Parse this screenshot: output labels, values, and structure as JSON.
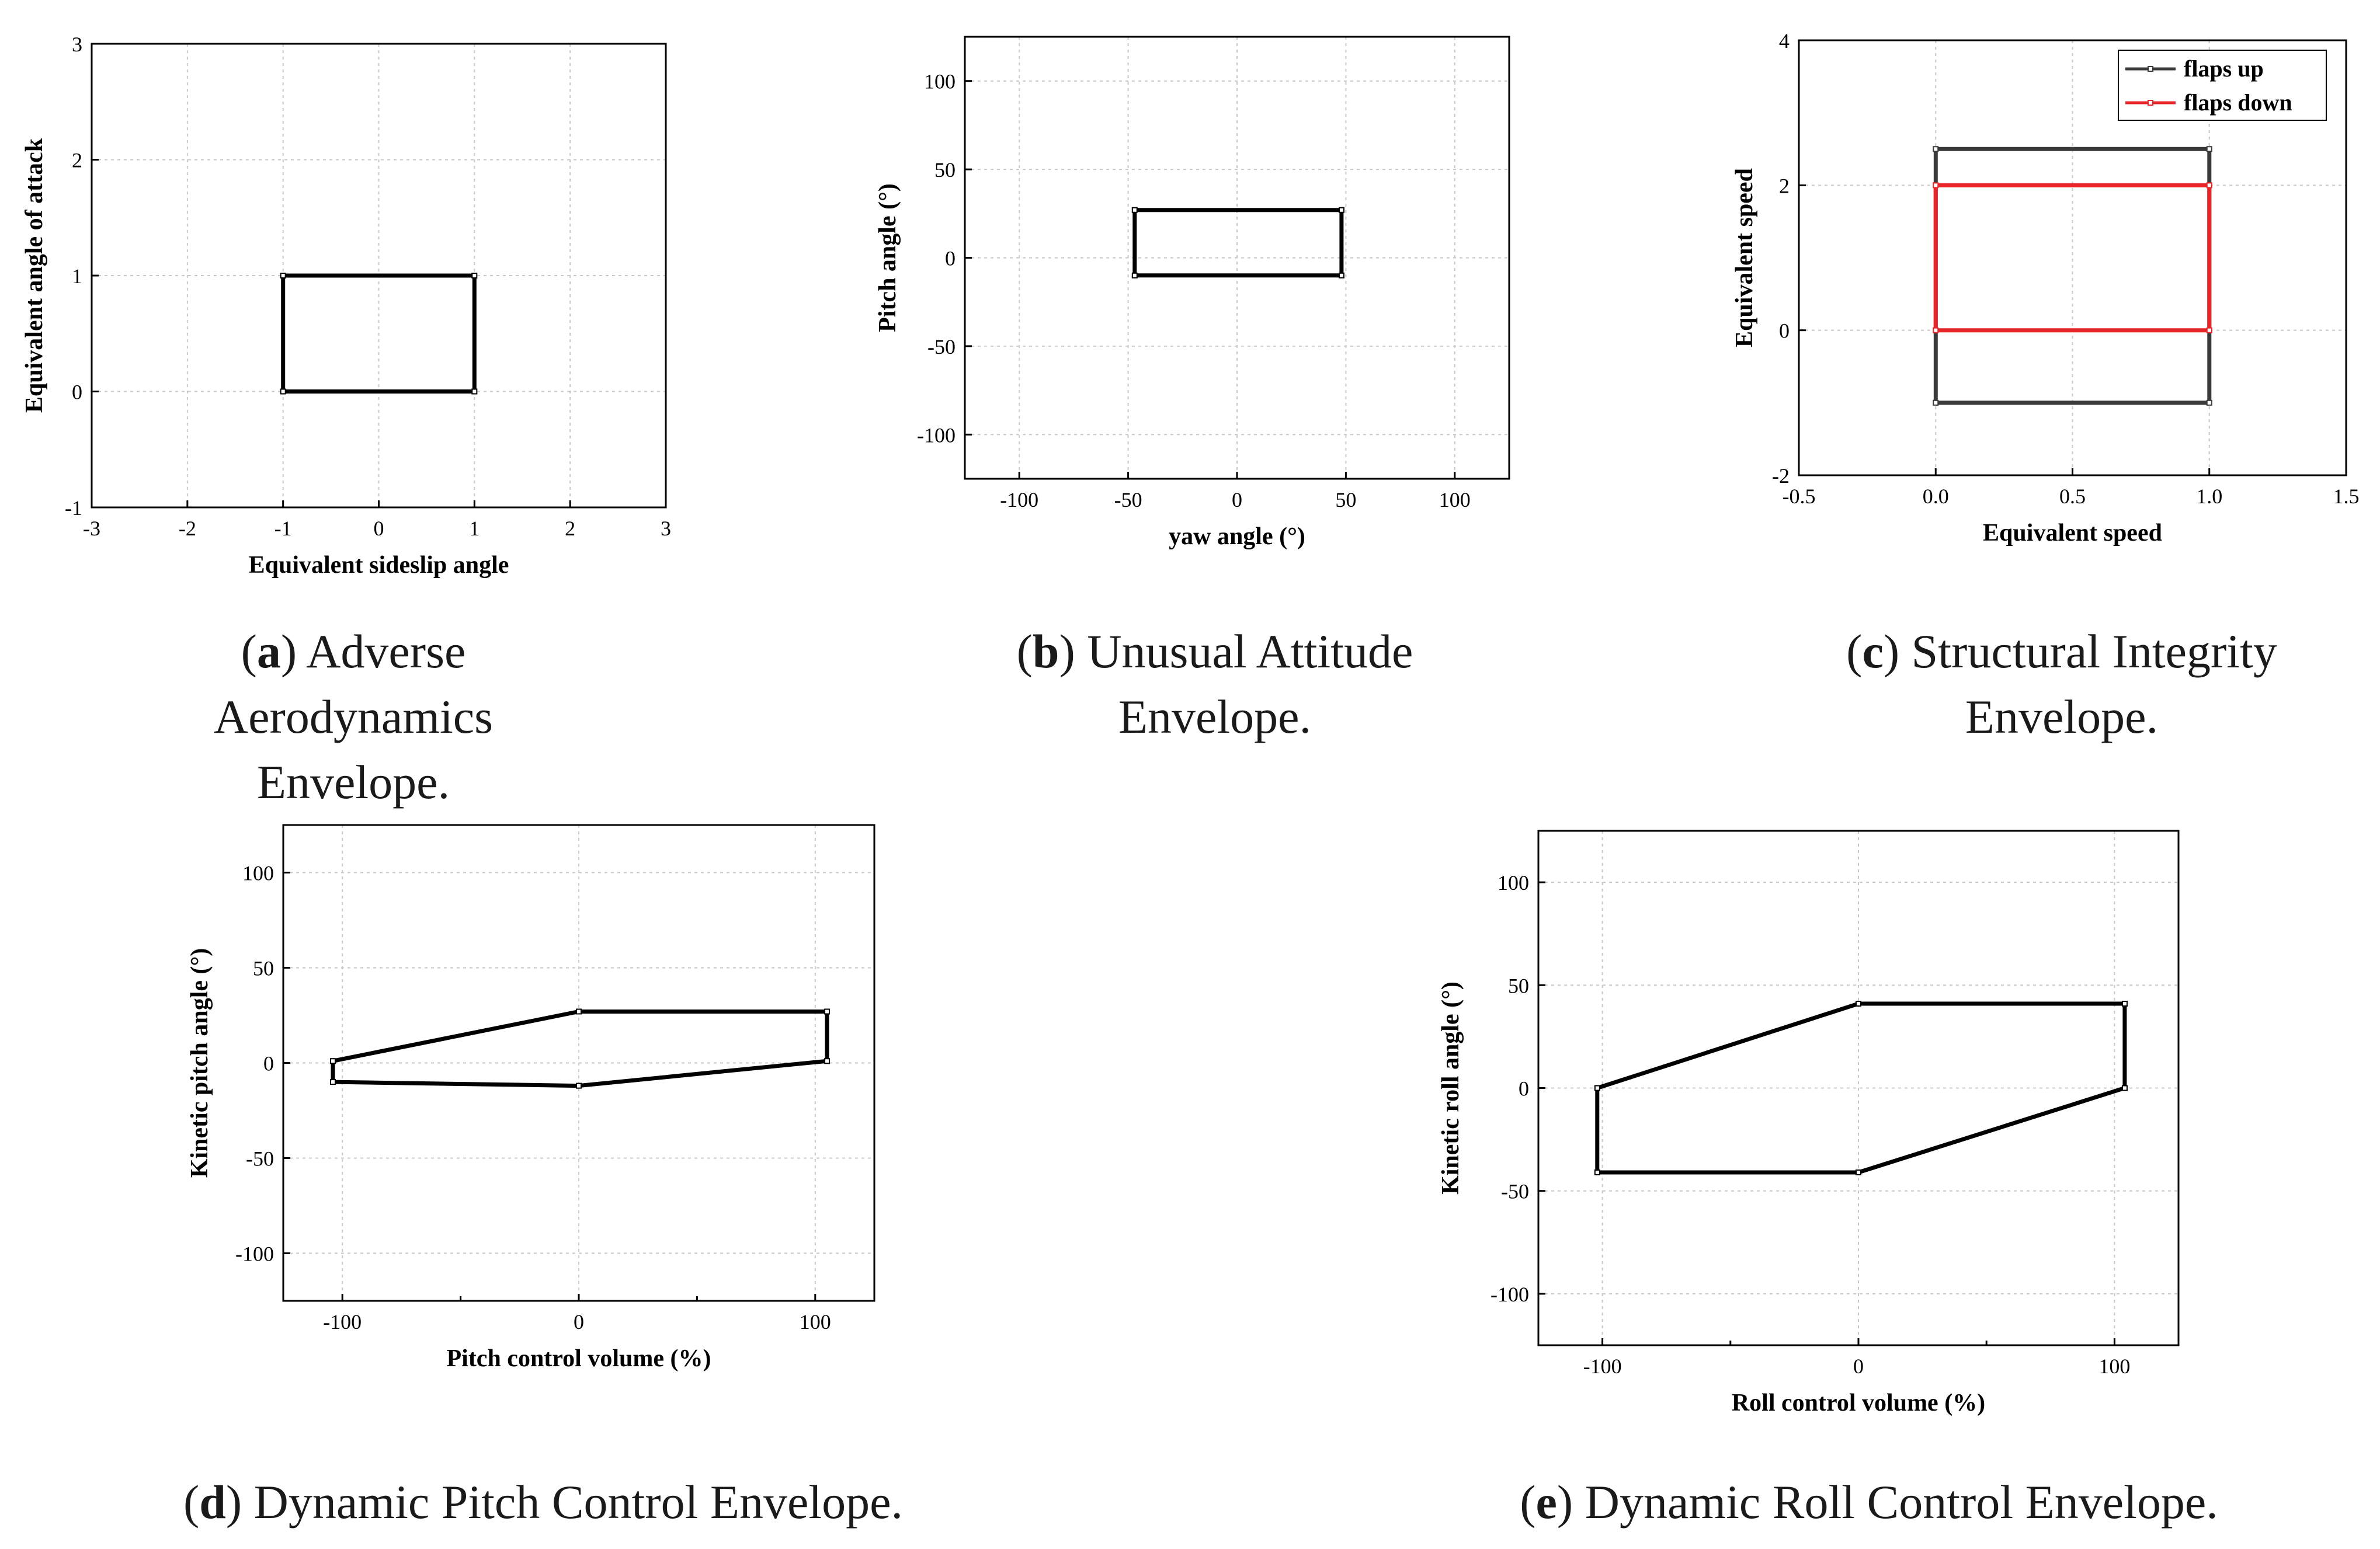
{
  "chart_data": [
    {
      "id": "a",
      "type": "line",
      "xlabel": "Equivalent sideslip angle",
      "ylabel": "Equivalent angle of attack",
      "xlim": [
        -3,
        3
      ],
      "ylim": [
        -1,
        3
      ],
      "xticks": [
        "-3",
        "-2",
        "-1",
        "0",
        "1",
        "2",
        "3"
      ],
      "yticks": [
        "-1",
        "0",
        "1",
        "2",
        "3"
      ],
      "xtick_values": [
        -3,
        -2,
        -1,
        0,
        1,
        2,
        3
      ],
      "ytick_values": [
        -1,
        0,
        1,
        2,
        3
      ],
      "series": [
        {
          "name": "envelope",
          "color": "#000000",
          "points": [
            [
              -1,
              0
            ],
            [
              1,
              0
            ],
            [
              1,
              1
            ],
            [
              -1,
              1
            ],
            [
              -1,
              0
            ]
          ]
        }
      ],
      "caption_letter": "a",
      "caption_lines": [
        ") Adverse Aerodynamics",
        "Envelope."
      ]
    },
    {
      "id": "b",
      "type": "line",
      "xlabel": "yaw angle (°)",
      "ylabel": "Pitch angle (°)",
      "xlim": [
        -125,
        125
      ],
      "ylim": [
        -125,
        125
      ],
      "xticks": [
        "-100",
        "-50",
        "0",
        "50",
        "100"
      ],
      "yticks": [
        "-100",
        "-50",
        "0",
        "50",
        "100"
      ],
      "xtick_values": [
        -100,
        -50,
        0,
        50,
        100
      ],
      "ytick_values": [
        -100,
        -50,
        0,
        50,
        100
      ],
      "series": [
        {
          "name": "envelope",
          "color": "#000000",
          "points": [
            [
              -47,
              -10
            ],
            [
              48,
              -10
            ],
            [
              48,
              27
            ],
            [
              -47,
              27
            ],
            [
              -47,
              -10
            ]
          ]
        }
      ],
      "caption_letter": "b",
      "caption_lines": [
        ") Unusual Attitude",
        "Envelope."
      ]
    },
    {
      "id": "c",
      "type": "line",
      "xlabel": "Equivalent speed",
      "ylabel": "Equivalent speed",
      "xlim": [
        -0.5,
        1.5
      ],
      "ylim": [
        -2,
        4
      ],
      "xticks": [
        "-0.5",
        "0.0",
        "0.5",
        "1.0",
        "1.5"
      ],
      "yticks": [
        "-2",
        "0",
        "2",
        "4"
      ],
      "xtick_values": [
        -0.5,
        0,
        0.5,
        1.0,
        1.5
      ],
      "ytick_values": [
        -2,
        0,
        2,
        4
      ],
      "legend": "top-right",
      "series": [
        {
          "name": "flaps up",
          "color": "#3a3a3a",
          "points": [
            [
              0,
              -1
            ],
            [
              1,
              -1
            ],
            [
              1,
              2.5
            ],
            [
              0,
              2.5
            ],
            [
              0,
              -1
            ]
          ]
        },
        {
          "name": "flaps down",
          "color": "#e8262a",
          "points": [
            [
              0,
              0
            ],
            [
              1,
              0
            ],
            [
              1,
              2
            ],
            [
              0,
              2
            ],
            [
              0,
              0
            ]
          ]
        }
      ],
      "caption_letter": "c",
      "caption_lines": [
        ") Structural Integrity",
        "Envelope."
      ]
    },
    {
      "id": "d",
      "type": "line",
      "xlabel": "Pitch control volume (%)",
      "ylabel": "Kinetic pitch angle (°)",
      "xlim": [
        -125,
        125
      ],
      "ylim": [
        -125,
        125
      ],
      "xticks": [
        "-100",
        "0",
        "100"
      ],
      "yticks": [
        "-100",
        "-50",
        "0",
        "50",
        "100"
      ],
      "xtick_values": [
        -100,
        0,
        100
      ],
      "ytick_values": [
        -100,
        -50,
        0,
        50,
        100
      ],
      "minor_xticks": [
        -50,
        50
      ],
      "series": [
        {
          "name": "envelope",
          "color": "#000000",
          "points": [
            [
              -104,
              1
            ],
            [
              0,
              27
            ],
            [
              105,
              27
            ],
            [
              105,
              1
            ],
            [
              0,
              -12
            ],
            [
              -104,
              -10
            ],
            [
              -104,
              1
            ]
          ]
        }
      ],
      "caption_letter": "d",
      "caption_lines": [
        ") Dynamic Pitch Control Envelope."
      ]
    },
    {
      "id": "e",
      "type": "line",
      "xlabel": "Roll control volume (%)",
      "ylabel": "Kinetic roll angle (°)",
      "xlim": [
        -125,
        125
      ],
      "ylim": [
        -125,
        125
      ],
      "xticks": [
        "-100",
        "0",
        "100"
      ],
      "yticks": [
        "-100",
        "-50",
        "0",
        "50",
        "100"
      ],
      "xtick_values": [
        -100,
        0,
        100
      ],
      "ytick_values": [
        -100,
        -50,
        0,
        50,
        100
      ],
      "minor_xticks": [
        -50,
        50
      ],
      "series": [
        {
          "name": "envelope",
          "color": "#000000",
          "points": [
            [
              -102,
              0
            ],
            [
              0,
              41
            ],
            [
              104,
              41
            ],
            [
              104,
              0
            ],
            [
              0,
              -41
            ],
            [
              -102,
              -41
            ],
            [
              -102,
              0
            ]
          ]
        }
      ],
      "caption_letter": "e",
      "caption_lines": [
        ") Dynamic Roll Control Envelope."
      ]
    }
  ]
}
